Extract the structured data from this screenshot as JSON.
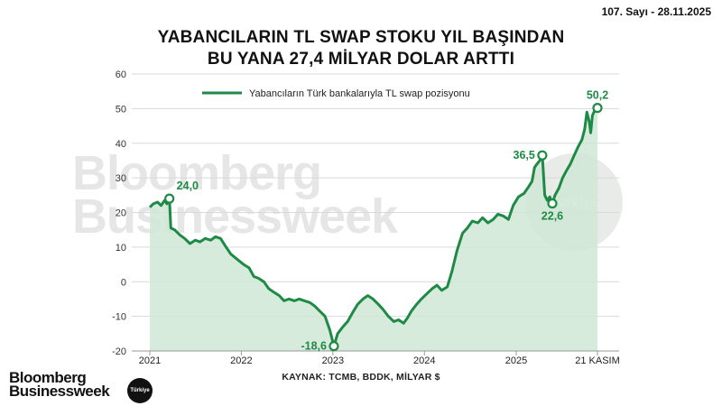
{
  "issue_label": "107. Sayı - 28.11.2025",
  "title_lines": [
    "YABANCILARIN TL SWAP STOKU YIL BAŞINDAN",
    "BU YANA 27,4 MİLYAR DOLAR ARTTI"
  ],
  "source": "KAYNAK: TCMB, BDDK, MİLYAR $",
  "brand": {
    "line1": "Bloomberg",
    "line2": "Businessweek",
    "badge": "Türkiye"
  },
  "watermark": {
    "line1": "Bloomberg",
    "line2": "Businessweek",
    "badge": "Türkiye"
  },
  "colors": {
    "line": "#1e8a45",
    "area": "#cfe8d5",
    "grid": "#d9d9d9"
  },
  "chart_data": {
    "type": "area",
    "series": [
      {
        "name": "Yabancıların Türk bankalarıyla TL swap pozisyonu",
        "points": [
          [
            "2021-01-01",
            21.5
          ],
          [
            "2021-01-15",
            22.5
          ],
          [
            "2021-02-01",
            23.0
          ],
          [
            "2021-02-15",
            22.0
          ],
          [
            "2021-03-01",
            23.5
          ],
          [
            "2021-03-10",
            22.5
          ],
          [
            "2021-03-20",
            24.0
          ],
          [
            "2021-03-26",
            15.5
          ],
          [
            "2021-04-10",
            15.0
          ],
          [
            "2021-05-01",
            13.5
          ],
          [
            "2021-05-20",
            12.5
          ],
          [
            "2021-06-10",
            11.0
          ],
          [
            "2021-07-01",
            12.0
          ],
          [
            "2021-07-20",
            11.5
          ],
          [
            "2021-08-10",
            12.5
          ],
          [
            "2021-09-01",
            12.0
          ],
          [
            "2021-09-20",
            13.0
          ],
          [
            "2021-10-10",
            12.5
          ],
          [
            "2021-11-01",
            10.0
          ],
          [
            "2021-11-20",
            8.0
          ],
          [
            "2021-12-15",
            6.5
          ],
          [
            "2022-01-10",
            5.0
          ],
          [
            "2022-02-01",
            4.0
          ],
          [
            "2022-02-20",
            1.5
          ],
          [
            "2022-03-10",
            1.0
          ],
          [
            "2022-04-01",
            0.0
          ],
          [
            "2022-04-20",
            -2.0
          ],
          [
            "2022-05-10",
            -3.0
          ],
          [
            "2022-06-01",
            -4.0
          ],
          [
            "2022-06-20",
            -5.5
          ],
          [
            "2022-07-10",
            -5.0
          ],
          [
            "2022-08-01",
            -5.5
          ],
          [
            "2022-08-20",
            -5.0
          ],
          [
            "2022-09-10",
            -5.5
          ],
          [
            "2022-10-01",
            -6.0
          ],
          [
            "2022-10-20",
            -7.0
          ],
          [
            "2022-11-10",
            -8.5
          ],
          [
            "2022-12-01",
            -10.0
          ],
          [
            "2022-12-20",
            -14.0
          ],
          [
            "2023-01-05",
            -18.6
          ],
          [
            "2023-01-20",
            -15.0
          ],
          [
            "2023-02-10",
            -13.0
          ],
          [
            "2023-03-01",
            -11.5
          ],
          [
            "2023-03-20",
            -9.0
          ],
          [
            "2023-04-10",
            -6.5
          ],
          [
            "2023-05-01",
            -5.0
          ],
          [
            "2023-05-20",
            -4.0
          ],
          [
            "2023-06-10",
            -5.0
          ],
          [
            "2023-07-01",
            -6.5
          ],
          [
            "2023-07-20",
            -8.0
          ],
          [
            "2023-08-10",
            -10.0
          ],
          [
            "2023-09-01",
            -11.5
          ],
          [
            "2023-09-20",
            -11.0
          ],
          [
            "2023-10-10",
            -12.0
          ],
          [
            "2023-10-25",
            -10.5
          ],
          [
            "2023-11-10",
            -8.5
          ],
          [
            "2023-12-01",
            -6.5
          ],
          [
            "2023-12-20",
            -5.0
          ],
          [
            "2024-01-10",
            -3.5
          ],
          [
            "2024-02-01",
            -2.0
          ],
          [
            "2024-02-20",
            -1.0
          ],
          [
            "2024-03-10",
            -2.5
          ],
          [
            "2024-04-01",
            -1.5
          ],
          [
            "2024-04-20",
            3.0
          ],
          [
            "2024-05-10",
            9.0
          ],
          [
            "2024-06-01",
            14.0
          ],
          [
            "2024-06-20",
            15.5
          ],
          [
            "2024-07-10",
            17.5
          ],
          [
            "2024-08-01",
            17.0
          ],
          [
            "2024-08-20",
            18.5
          ],
          [
            "2024-09-10",
            17.0
          ],
          [
            "2024-10-01",
            18.0
          ],
          [
            "2024-10-20",
            19.5
          ],
          [
            "2024-11-10",
            19.0
          ],
          [
            "2024-12-01",
            18.0
          ],
          [
            "2024-12-20",
            22.0
          ],
          [
            "2025-01-10",
            24.5
          ],
          [
            "2025-02-01",
            25.5
          ],
          [
            "2025-02-20",
            27.5
          ],
          [
            "2025-03-05",
            29.0
          ],
          [
            "2025-03-15",
            33.0
          ],
          [
            "2025-03-25",
            34.0
          ],
          [
            "2025-04-05",
            35.0
          ],
          [
            "2025-04-15",
            36.5
          ],
          [
            "2025-04-25",
            25.0
          ],
          [
            "2025-05-05",
            23.5
          ],
          [
            "2025-05-15",
            24.5
          ],
          [
            "2025-05-25",
            22.6
          ],
          [
            "2025-06-05",
            25.0
          ],
          [
            "2025-06-20",
            27.0
          ],
          [
            "2025-07-05",
            30.0
          ],
          [
            "2025-07-20",
            32.0
          ],
          [
            "2025-08-05",
            34.0
          ],
          [
            "2025-08-20",
            36.5
          ],
          [
            "2025-09-05",
            39.0
          ],
          [
            "2025-09-20",
            41.0
          ],
          [
            "2025-10-01",
            44.0
          ],
          [
            "2025-10-10",
            49.0
          ],
          [
            "2025-10-20",
            46.0
          ],
          [
            "2025-10-25",
            43.0
          ],
          [
            "2025-11-01",
            48.0
          ],
          [
            "2025-11-10",
            49.5
          ],
          [
            "2025-11-21",
            50.2
          ]
        ]
      }
    ],
    "annotations": [
      {
        "x": "2021-03-20",
        "y": 24.0,
        "label": "24,0",
        "position": "above-right"
      },
      {
        "x": "2023-01-05",
        "y": -18.6,
        "label": "-18,6",
        "position": "left"
      },
      {
        "x": "2025-04-15",
        "y": 36.5,
        "label": "36,5",
        "position": "left"
      },
      {
        "x": "2025-05-25",
        "y": 22.6,
        "label": "22,6",
        "position": "below"
      },
      {
        "x": "2025-11-21",
        "y": 50.2,
        "label": "50,2",
        "position": "above"
      }
    ],
    "xticks": [
      {
        "x": "2021-01-01",
        "label": "2021"
      },
      {
        "x": "2022-01-01",
        "label": "2022"
      },
      {
        "x": "2023-01-01",
        "label": "2023"
      },
      {
        "x": "2024-01-01",
        "label": "2024"
      },
      {
        "x": "2025-01-01",
        "label": "2025"
      },
      {
        "x": "2025-11-21",
        "label": "21 KASIM"
      }
    ],
    "yticks": [
      -20,
      -10,
      0,
      10,
      20,
      30,
      40,
      50,
      60
    ],
    "ylim": [
      -20,
      60
    ],
    "xlim": [
      "2021-01-01",
      "2025-11-21"
    ],
    "grid": true,
    "legend_position": "top"
  }
}
